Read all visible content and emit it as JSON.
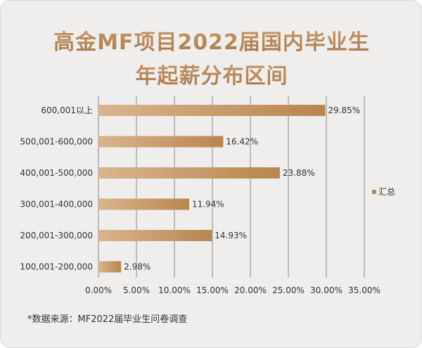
{
  "title_line1": "高金MF项目2022届国内毕业生",
  "title_line2": "年起薪分布区间",
  "source_note": "*数据来源：MF2022届毕业生问卷调查",
  "colors": {
    "bar_start": "#d9b58c",
    "bar_end": "#b8864f",
    "title": "#b98a5c",
    "grid": "#8a8a8a",
    "text": "#333333",
    "background": "#efeeed"
  },
  "chart_data": {
    "type": "bar",
    "orientation": "horizontal",
    "categories": [
      "600,001以上",
      "500,001-600,000",
      "400,001-500,000",
      "300,001-400,000",
      "200,001-300,000",
      "100,001-200,000"
    ],
    "series": [
      {
        "name": "汇总",
        "values": [
          29.85,
          16.42,
          23.88,
          11.94,
          14.93,
          2.98
        ],
        "labels": [
          "29.85%",
          "16.42%",
          "23.88%",
          "11.94%",
          "14.93%",
          "2.98%"
        ]
      }
    ],
    "xlim": [
      0,
      35
    ],
    "xticks": [
      "0.00%",
      "5.00%",
      "10.00%",
      "15.00%",
      "20.00%",
      "25.00%",
      "30.00%",
      "35.00%"
    ],
    "grid": true,
    "legend_position": "right"
  }
}
